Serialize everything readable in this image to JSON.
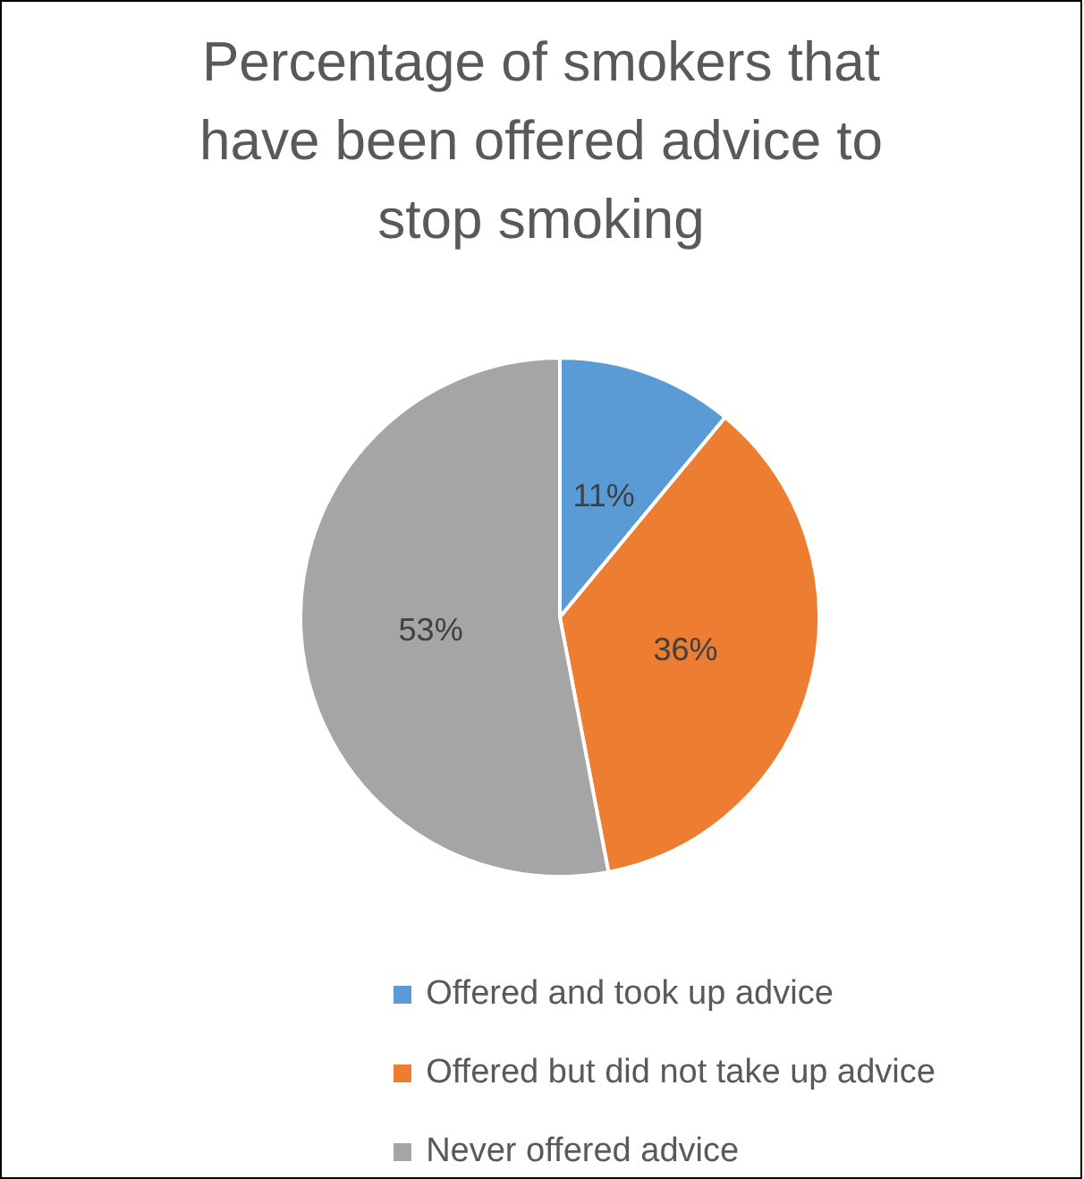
{
  "chart_data": {
    "type": "pie",
    "title": "Percentage of smokers that have been offered advice to stop smoking",
    "categories": [
      "Offered and took up advice",
      "Offered but did not take up advice",
      "Never offered advice"
    ],
    "values": [
      11,
      36,
      53
    ],
    "colors": [
      "#5b9bd5",
      "#ed7d31",
      "#a5a5a5"
    ],
    "value_labels": [
      "11%",
      "36%",
      "53%"
    ],
    "legend": "bottom"
  }
}
